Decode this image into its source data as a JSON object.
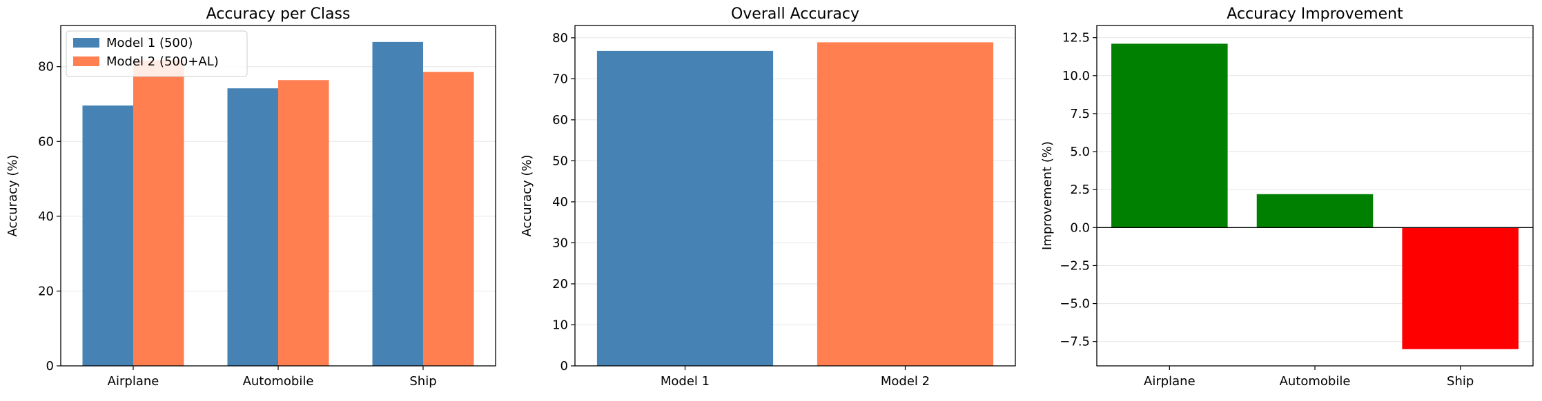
{
  "chart_data": [
    {
      "type": "bar",
      "title": "Accuracy per Class",
      "xlabel": "",
      "ylabel": "Accuracy (%)",
      "categories": [
        "Airplane",
        "Automobile",
        "Ship"
      ],
      "series": [
        {
          "name": "Model 1 (500)",
          "values": [
            69.6,
            74.2,
            86.6
          ],
          "color": "#4682b4"
        },
        {
          "name": "Model 2 (500+AL)",
          "values": [
            81.7,
            76.4,
            78.6
          ],
          "color": "#ff7f50"
        }
      ],
      "ylim": [
        0,
        91
      ],
      "yticks": [
        0,
        20,
        40,
        60,
        80
      ],
      "ytick_labels": [
        "0",
        "20",
        "40",
        "60",
        "80"
      ],
      "grid": "y",
      "legend": "top-left"
    },
    {
      "type": "bar",
      "title": "Overall Accuracy",
      "xlabel": "",
      "ylabel": "Accuracy (%)",
      "categories": [
        "Model 1",
        "Model 2"
      ],
      "values": [
        76.8,
        78.9
      ],
      "colors": [
        "#4682b4",
        "#ff7f50"
      ],
      "ylim": [
        0,
        83
      ],
      "yticks": [
        0,
        10,
        20,
        30,
        40,
        50,
        60,
        70,
        80
      ],
      "ytick_labels": [
        "0",
        "10",
        "20",
        "30",
        "40",
        "50",
        "60",
        "70",
        "80"
      ],
      "grid": "y"
    },
    {
      "type": "bar",
      "title": "Accuracy Improvement",
      "xlabel": "",
      "ylabel": "Improvement (%)",
      "categories": [
        "Airplane",
        "Automobile",
        "Ship"
      ],
      "values": [
        12.1,
        2.2,
        -8.0
      ],
      "colors": [
        "#008000",
        "#008000",
        "#ff0000"
      ],
      "ylim": [
        -9.1,
        13.3
      ],
      "yticks": [
        -7.5,
        -5.0,
        -2.5,
        0.0,
        2.5,
        5.0,
        7.5,
        10.0,
        12.5
      ],
      "ytick_labels": [
        "−7.5",
        "−5.0",
        "−2.5",
        "0.0",
        "2.5",
        "5.0",
        "7.5",
        "10.0",
        "12.5"
      ],
      "grid": "y",
      "zero_line": true
    }
  ]
}
